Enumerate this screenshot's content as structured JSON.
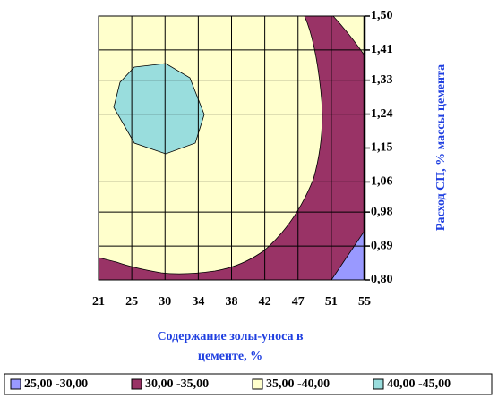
{
  "chart_data": {
    "type": "contour",
    "categories": [
      "21",
      "25",
      "30",
      "34",
      "38",
      "42",
      "47",
      "51",
      "55"
    ],
    "xlabel": [
      "Содержание золы-уноса в",
      "цементе, %"
    ],
    "ylabel": "Расход СП, % массы цемента",
    "ylim": [
      0.8,
      1.5
    ],
    "yticks": [
      {
        "value": 0.8,
        "label": "0,80"
      },
      {
        "value": 0.89,
        "label": "0,89"
      },
      {
        "value": 0.98,
        "label": "0,98"
      },
      {
        "value": 1.06,
        "label": "1,06"
      },
      {
        "value": 1.15,
        "label": "1,15"
      },
      {
        "value": 1.24,
        "label": "1,24"
      },
      {
        "value": 1.33,
        "label": "1,33"
      },
      {
        "value": 1.41,
        "label": "1,41"
      },
      {
        "value": 1.5,
        "label": "1,50"
      }
    ],
    "series": [
      {
        "name": "25,00 -30,00",
        "color": "#9999ff"
      },
      {
        "name": "30,00 -35,00",
        "color": "#993366"
      },
      {
        "name": "35,00 -40,00",
        "color": "#ffffcc"
      },
      {
        "name": "40,00 -45,00",
        "color": "#99dddd"
      }
    ],
    "grid": true,
    "legend": "bottom"
  }
}
